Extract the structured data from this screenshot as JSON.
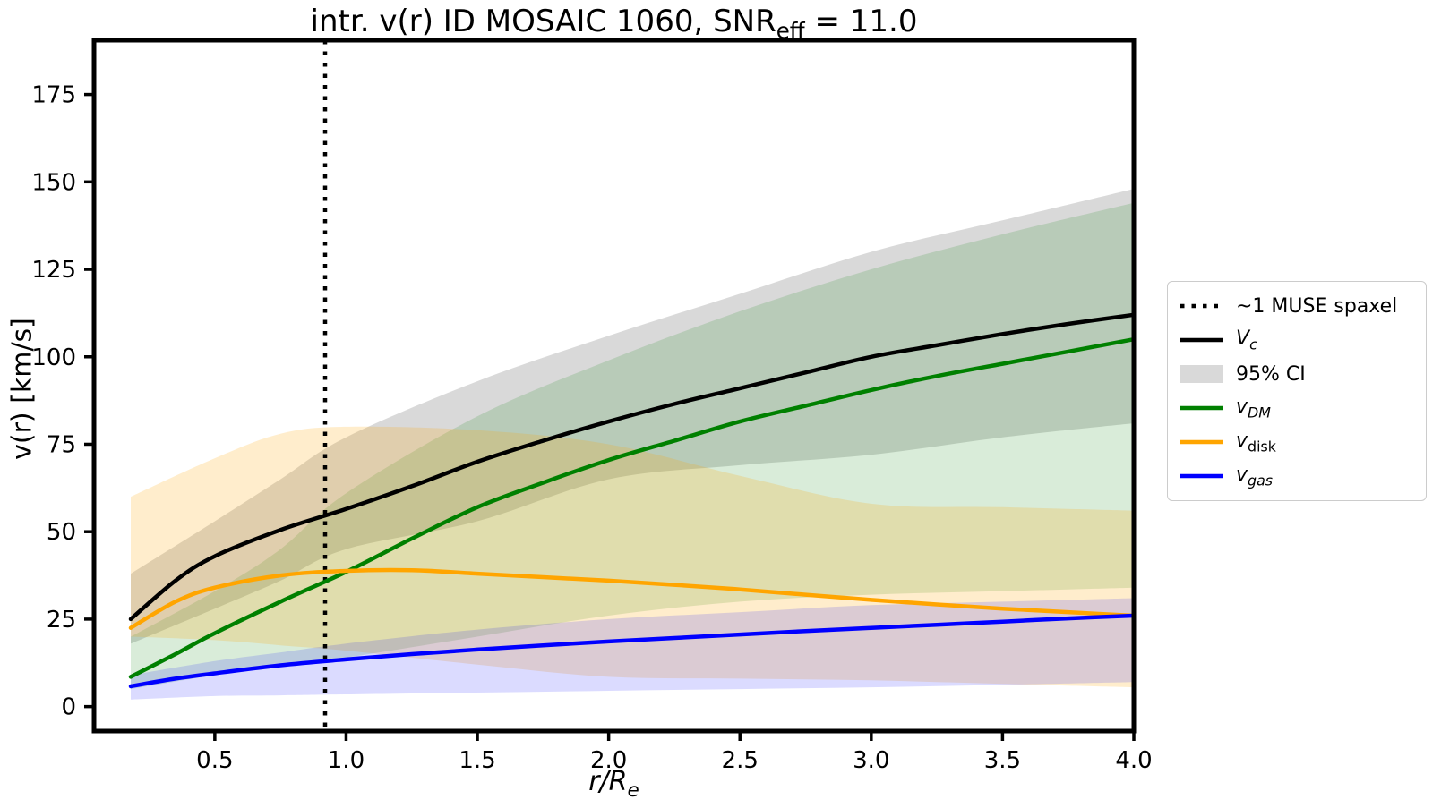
{
  "title": {
    "prefix": "intr. v(r) ID MOSAIC 1060, SNR",
    "sub": "eff",
    "suffix": " = 11.0"
  },
  "axes": {
    "ylabel": "v(r) [km/s]",
    "xlabel_base": "r/R",
    "xlabel_sub": "e"
  },
  "chart_data": {
    "type": "line",
    "title": "intr. v(r) ID MOSAIC 1060, SNR_eff = 11.0",
    "xlabel": "r/R_e",
    "ylabel": "v(r) [km/s]",
    "xlim": [
      0.04,
      4.0
    ],
    "ylim": [
      -7,
      190.5
    ],
    "grid": false,
    "legend_position": "right outside",
    "xticks": [
      0.5,
      1.0,
      1.5,
      2.0,
      2.5,
      3.0,
      3.5,
      4.0
    ],
    "xtick_labels": [
      "0.5",
      "1.0",
      "1.5",
      "2.0",
      "2.5",
      "3.0",
      "3.5",
      "4.0"
    ],
    "yticks": [
      0,
      25,
      50,
      75,
      100,
      125,
      150,
      175
    ],
    "ytick_labels": [
      "0",
      "25",
      "50",
      "75",
      "100",
      "125",
      "150",
      "175"
    ],
    "vline": {
      "x": 0.92,
      "color": "#000000",
      "style": "dotted",
      "label": "~1 MUSE spaxel"
    },
    "x": [
      0.18,
      0.35,
      0.5,
      0.75,
      1.0,
      1.25,
      1.5,
      1.75,
      2.0,
      2.25,
      2.5,
      2.75,
      3.0,
      3.25,
      3.5,
      3.75,
      4.0
    ],
    "series": [
      {
        "name": "V_c",
        "color": "#000000",
        "values": [
          25,
          36,
          43,
          50.5,
          56.5,
          63,
          70,
          76,
          81.5,
          86.5,
          91,
          95.5,
          100,
          103.3,
          106.5,
          109.4,
          112
        ]
      },
      {
        "name": "v_DM",
        "color": "#008000",
        "values": [
          8.5,
          15,
          21,
          30,
          38.5,
          48,
          57,
          64,
          70.5,
          76,
          81.5,
          86,
          90.5,
          94.5,
          98,
          101.5,
          105
        ]
      },
      {
        "name": "v_disk",
        "color": "#FFA500",
        "values": [
          22.5,
          30,
          34,
          37.5,
          38.8,
          39,
          38,
          37,
          36,
          34.8,
          33.5,
          32,
          30.5,
          29.2,
          28,
          27,
          26
        ]
      },
      {
        "name": "v_gas",
        "color": "#0000FF",
        "values": [
          5.8,
          8,
          9.5,
          11.8,
          13.5,
          15,
          16.3,
          17.5,
          18.6,
          19.6,
          20.6,
          21.6,
          22.5,
          23.4,
          24.3,
          25.2,
          26
        ]
      }
    ],
    "bands": [
      {
        "name": "Vc 95% CI",
        "color": "rgba(128,128,128,0.30)",
        "x": [
          0.18,
          0.5,
          0.75,
          1.0,
          1.5,
          2.0,
          2.5,
          3.0,
          3.5,
          4.0
        ],
        "upper": [
          38,
          53,
          65,
          77,
          93,
          106,
          118,
          130,
          139,
          148
        ],
        "lower": [
          18,
          28,
          36,
          45,
          53,
          65,
          69,
          72,
          77,
          81
        ]
      },
      {
        "name": "vDM 95% CI",
        "color": "rgba(0,128,0,0.15)",
        "x": [
          0.18,
          0.5,
          0.75,
          1.0,
          1.5,
          2.0,
          2.5,
          3.0,
          3.5,
          4.0
        ],
        "upper": [
          20,
          33,
          45,
          61,
          83,
          99,
          113,
          125,
          135,
          144
        ],
        "lower": [
          5,
          9,
          11.5,
          14,
          20,
          26,
          30,
          32,
          33,
          34
        ]
      },
      {
        "name": "vdisk 95% CI",
        "color": "rgba(255,165,0,0.20)",
        "x": [
          0.18,
          0.5,
          0.75,
          1.0,
          1.5,
          2.0,
          2.5,
          3.0,
          3.5,
          4.0
        ],
        "upper": [
          60,
          71,
          78,
          80,
          79,
          75,
          66,
          58,
          57,
          56
        ],
        "lower": [
          20,
          19,
          17.5,
          16,
          12,
          8.5,
          8,
          7.5,
          6.5,
          5.5
        ]
      },
      {
        "name": "vgas 95% CI",
        "color": "rgba(0,0,255,0.14)",
        "x": [
          0.18,
          0.5,
          0.75,
          1.0,
          1.5,
          2.0,
          2.5,
          3.0,
          3.5,
          4.0
        ],
        "upper": [
          9,
          13,
          15.5,
          18,
          22,
          25,
          27,
          29,
          30,
          31
        ],
        "lower": [
          2,
          3,
          3.2,
          3.5,
          4,
          4.5,
          5,
          5.5,
          6.2,
          7
        ]
      }
    ],
    "legend": [
      {
        "type": "dotted",
        "color": "#000000",
        "label": {
          "text": "~1 MUSE spaxel"
        }
      },
      {
        "type": "line",
        "color": "#000000",
        "label": {
          "base": "V",
          "sub": "c",
          "base_italic": true,
          "sub_italic": true
        }
      },
      {
        "type": "patch",
        "color": "rgba(128,128,128,0.30)",
        "label": {
          "text": "95% CI"
        }
      },
      {
        "type": "line",
        "color": "#008000",
        "label": {
          "base": "v",
          "sub": "DM",
          "base_italic": true,
          "sub_italic": true
        }
      },
      {
        "type": "line",
        "color": "#FFA500",
        "label": {
          "base": "v",
          "sub": "disk",
          "base_italic": true,
          "sub_italic": false
        }
      },
      {
        "type": "line",
        "color": "#0000FF",
        "label": {
          "base": "v",
          "sub": "gas",
          "base_italic": true,
          "sub_italic": true
        }
      }
    ]
  }
}
